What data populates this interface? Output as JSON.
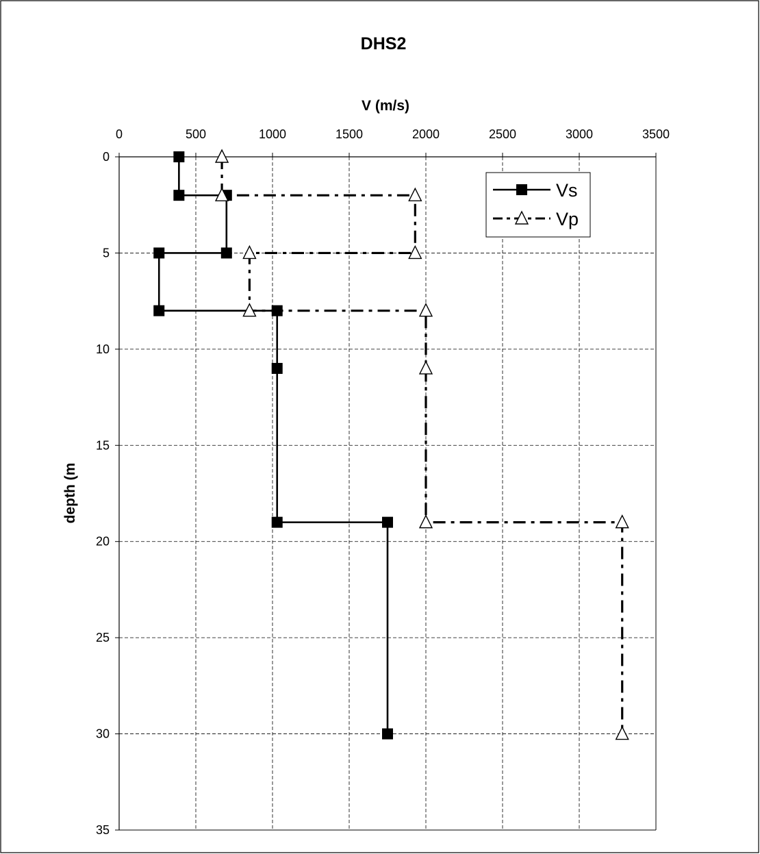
{
  "chart_data": {
    "type": "line",
    "title": "DHS2",
    "xlabel": "V (m/s)",
    "ylabel": "depth (m",
    "xlim": [
      0,
      3500
    ],
    "ylim": [
      0,
      35
    ],
    "y_inverted": true,
    "x_axis_position": "top",
    "grid": true,
    "x_ticks": [
      "0",
      "500",
      "1000",
      "1500",
      "2000",
      "2500",
      "3000",
      "3500"
    ],
    "y_ticks": [
      "0",
      "5",
      "10",
      "15",
      "20",
      "25",
      "30",
      "35"
    ],
    "legend_position": "top-right",
    "series": [
      {
        "name": "Vs",
        "color": "#000000",
        "line_style": "solid",
        "marker": "filled-square",
        "x": [
          390,
          390,
          700,
          700,
          260,
          260,
          1030,
          1030,
          1030,
          1750,
          1750
        ],
        "y": [
          0,
          2,
          2,
          5,
          5,
          8,
          8,
          11,
          19,
          19,
          30
        ]
      },
      {
        "name": "Vp",
        "color": "#000000",
        "line_style": "dash-dot",
        "marker": "open-triangle",
        "x": [
          670,
          670,
          1930,
          1930,
          850,
          850,
          2000,
          2000,
          2000,
          3280,
          3280
        ],
        "y": [
          0,
          2,
          2,
          5,
          5,
          8,
          8,
          11,
          19,
          19,
          30
        ]
      }
    ]
  }
}
